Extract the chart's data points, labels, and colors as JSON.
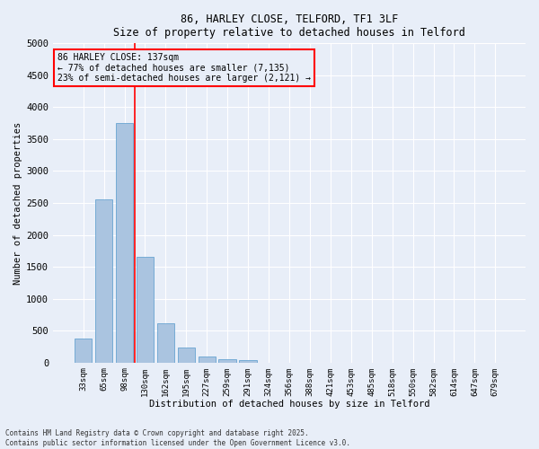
{
  "title_line1": "86, HARLEY CLOSE, TELFORD, TF1 3LF",
  "title_line2": "Size of property relative to detached houses in Telford",
  "xlabel": "Distribution of detached houses by size in Telford",
  "ylabel": "Number of detached properties",
  "categories": [
    "33sqm",
    "65sqm",
    "98sqm",
    "130sqm",
    "162sqm",
    "195sqm",
    "227sqm",
    "259sqm",
    "291sqm",
    "324sqm",
    "356sqm",
    "388sqm",
    "421sqm",
    "453sqm",
    "485sqm",
    "518sqm",
    "550sqm",
    "582sqm",
    "614sqm",
    "647sqm",
    "679sqm"
  ],
  "values": [
    380,
    2550,
    3750,
    1650,
    620,
    230,
    95,
    50,
    40,
    0,
    0,
    0,
    0,
    0,
    0,
    0,
    0,
    0,
    0,
    0,
    0
  ],
  "bar_color": "#aac4e0",
  "bar_edge_color": "#5599cc",
  "vline_index": 3,
  "vline_color": "red",
  "ylim": [
    0,
    5000
  ],
  "yticks": [
    0,
    500,
    1000,
    1500,
    2000,
    2500,
    3000,
    3500,
    4000,
    4500,
    5000
  ],
  "annotation_text": "86 HARLEY CLOSE: 137sqm\n← 77% of detached houses are smaller (7,135)\n23% of semi-detached houses are larger (2,121) →",
  "annotation_box_color": "red",
  "bg_color": "#e8eef8",
  "grid_color": "white",
  "footer": "Contains HM Land Registry data © Crown copyright and database right 2025.\nContains public sector information licensed under the Open Government Licence v3.0."
}
